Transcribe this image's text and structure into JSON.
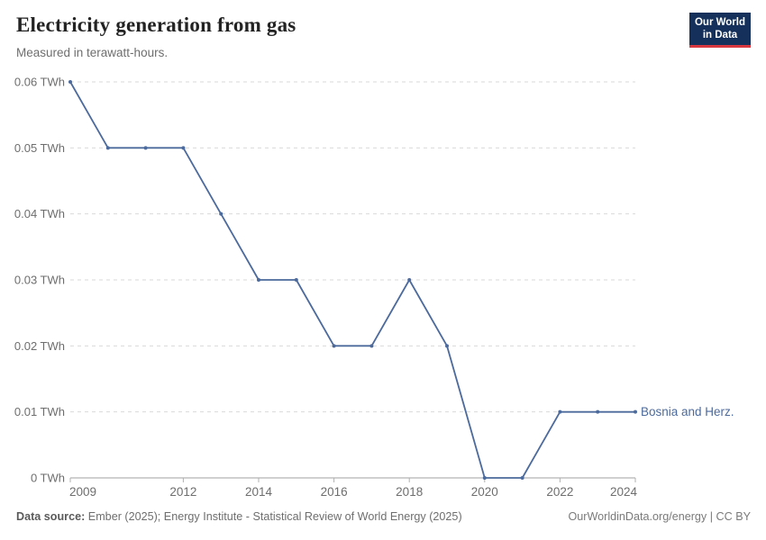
{
  "header": {
    "title": "Electricity generation from gas",
    "subtitle": "Measured in terawatt-hours."
  },
  "logo": {
    "line1": "Our World",
    "line2": "in Data",
    "background": "#15315B",
    "accent": "#D8373F"
  },
  "footer": {
    "source_label": "Data source:",
    "source_text": " Ember (2025); Energy Institute - Statistical Review of World Energy (2025)",
    "credit": "OurWorldinData.org/energy | CC BY"
  },
  "chart_data": {
    "type": "line",
    "title": "Electricity generation from gas",
    "subtitle": "Measured in terawatt-hours.",
    "unit": "TWh",
    "x": [
      2009,
      2010,
      2011,
      2012,
      2013,
      2014,
      2015,
      2016,
      2017,
      2018,
      2019,
      2020,
      2021,
      2022,
      2023,
      2024
    ],
    "series": [
      {
        "name": "Bosnia and Herz.",
        "color": "#4C6A9C",
        "values": [
          0.06,
          0.05,
          0.05,
          0.05,
          0.04,
          0.03,
          0.03,
          0.02,
          0.02,
          0.03,
          0.02,
          0,
          0,
          0.01,
          0.01,
          0.01
        ]
      }
    ],
    "ylim": [
      0,
      0.06
    ],
    "y_ticks": [
      {
        "value": 0,
        "label": "0 TWh"
      },
      {
        "value": 0.01,
        "label": "0.01 TWh"
      },
      {
        "value": 0.02,
        "label": "0.02 TWh"
      },
      {
        "value": 0.03,
        "label": "0.03 TWh"
      },
      {
        "value": 0.04,
        "label": "0.04 TWh"
      },
      {
        "value": 0.05,
        "label": "0.05 TWh"
      },
      {
        "value": 0.06,
        "label": "0.06 TWh"
      }
    ],
    "x_tick_labels": [
      "2009",
      "2012",
      "2014",
      "2016",
      "2018",
      "2020",
      "2022",
      "2024"
    ],
    "grid": "horizontal-dashed",
    "legend_position": "end-of-line-label",
    "colors": {
      "grid": "#d9d9d9",
      "axis": "#a0a0a0",
      "tick": "#b0b0b0",
      "tick_text": "#6e6e6e"
    }
  }
}
